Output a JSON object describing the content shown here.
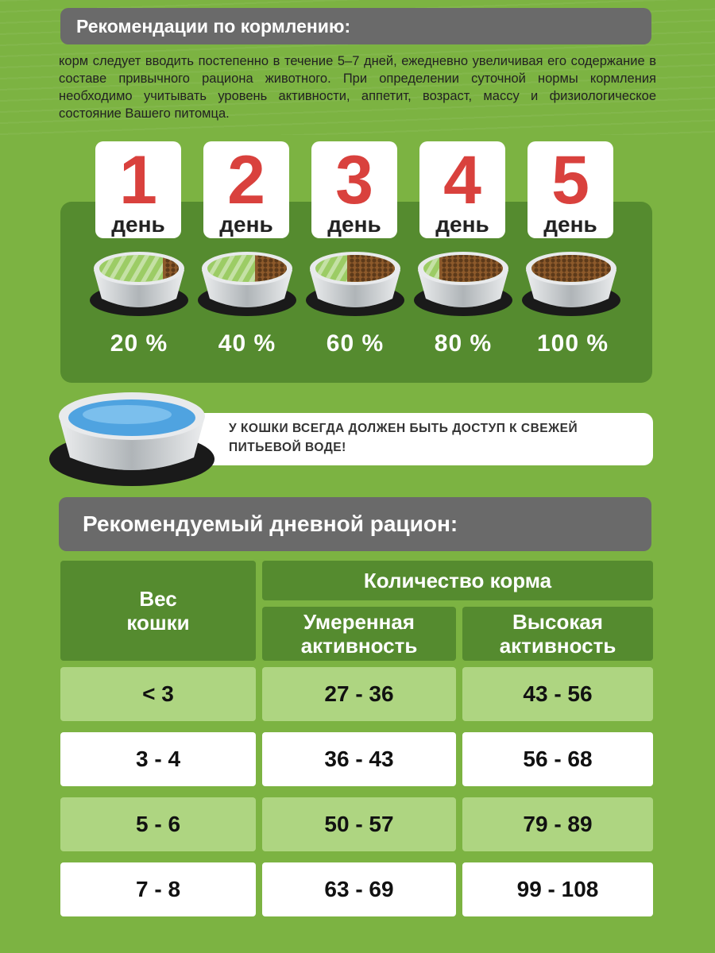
{
  "header": {
    "title": "Рекомендации по кормлению:"
  },
  "intro": "корм следует вводить постепенно в течение 5–7 дней, ежедневно увеличивая его содержание в составе привычного рациона животного. При определении суточной нормы кормления необходимо учитывать уровень активности, аппетит, возраст, массу и физиологическое состояние Вашего питомца.",
  "days": [
    {
      "number": "1",
      "word": "день",
      "percent": "20 %",
      "fill": 0.2
    },
    {
      "number": "2",
      "word": "день",
      "percent": "40 %",
      "fill": 0.4
    },
    {
      "number": "3",
      "word": "день",
      "percent": "60 %",
      "fill": 0.6
    },
    {
      "number": "4",
      "word": "день",
      "percent": "80 %",
      "fill": 0.8
    },
    {
      "number": "5",
      "word": "день",
      "percent": "100 %",
      "fill": 1.0
    }
  ],
  "water": {
    "text": "У КОШКИ ВСЕГДА ДОЛЖЕН БЫТЬ ДОСТУП К СВЕЖЕЙ ПИТЬЕВОЙ ВОДЕ!"
  },
  "ration": {
    "title": "Рекомендуемый дневной рацион:",
    "col_weight": "Вес кошки",
    "col_amount": "Количество корма",
    "col_moderate": "Умеренная активность",
    "col_high": "Высокая активность",
    "rows": [
      {
        "weight": "< 3",
        "moderate": "27 - 36",
        "high": "43 - 56"
      },
      {
        "weight": "3 - 4",
        "moderate": "36 - 43",
        "high": "56 - 68"
      },
      {
        "weight": "5 - 6",
        "moderate": "50 - 57",
        "high": "79 - 89"
      },
      {
        "weight": "7 - 8",
        "moderate": "63 - 69",
        "high": "99 - 108"
      }
    ]
  },
  "colors": {
    "background": "#7cb342",
    "panel_dark": "#558b2f",
    "banner": "#6a6a6a",
    "day_number": "#d9413d",
    "row_light": "#aed581",
    "kibble": "#8d5a2b",
    "old_food": "#9ccc65",
    "water": "#4fa3e0"
  }
}
